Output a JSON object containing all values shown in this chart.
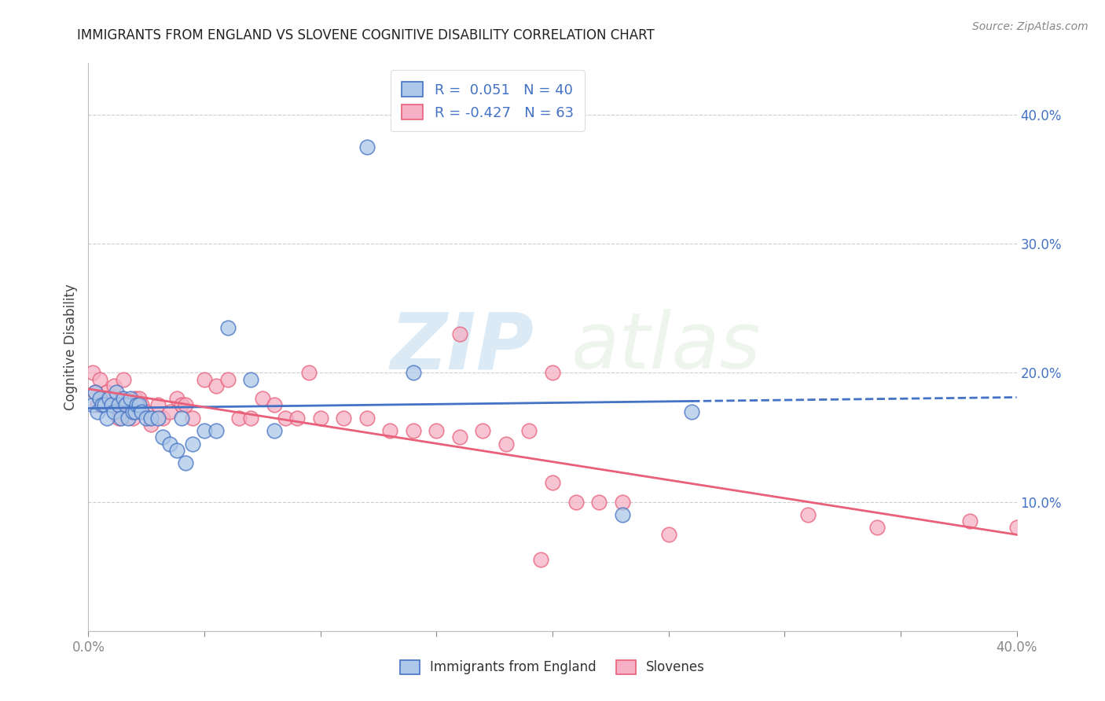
{
  "title": "IMMIGRANTS FROM ENGLAND VS SLOVENE COGNITIVE DISABILITY CORRELATION CHART",
  "source": "Source: ZipAtlas.com",
  "ylabel": "Cognitive Disability",
  "xlim": [
    0.0,
    0.4
  ],
  "ylim": [
    0.0,
    0.44
  ],
  "yticks_right": [
    0.1,
    0.2,
    0.3,
    0.4
  ],
  "ytick_labels_right": [
    "10.0%",
    "20.0%",
    "30.0%",
    "40.0%"
  ],
  "blue_R": 0.051,
  "blue_N": 40,
  "pink_R": -0.427,
  "pink_N": 63,
  "blue_color": "#adc8e8",
  "pink_color": "#f5b0c5",
  "blue_line_color": "#4472c4",
  "pink_line_color": "#e8607a",
  "legend_text_color": "#4472c4",
  "title_color": "#222222",
  "watermark_zip": "ZIP",
  "watermark_atlas": "atlas",
  "blue_scatter_x": [
    0.002,
    0.003,
    0.004,
    0.005,
    0.006,
    0.007,
    0.008,
    0.009,
    0.01,
    0.011,
    0.012,
    0.013,
    0.014,
    0.015,
    0.016,
    0.017,
    0.018,
    0.019,
    0.02,
    0.021,
    0.022,
    0.023,
    0.025,
    0.027,
    0.03,
    0.032,
    0.035,
    0.038,
    0.04,
    0.042,
    0.045,
    0.05,
    0.055,
    0.06,
    0.07,
    0.08,
    0.12,
    0.14,
    0.23,
    0.26
  ],
  "blue_scatter_y": [
    0.175,
    0.185,
    0.17,
    0.18,
    0.175,
    0.175,
    0.165,
    0.18,
    0.175,
    0.17,
    0.185,
    0.175,
    0.165,
    0.18,
    0.175,
    0.165,
    0.18,
    0.17,
    0.17,
    0.175,
    0.175,
    0.17,
    0.165,
    0.165,
    0.165,
    0.15,
    0.145,
    0.14,
    0.165,
    0.13,
    0.145,
    0.155,
    0.155,
    0.235,
    0.195,
    0.155,
    0.375,
    0.2,
    0.09,
    0.17
  ],
  "pink_scatter_x": [
    0.002,
    0.003,
    0.004,
    0.005,
    0.006,
    0.007,
    0.008,
    0.009,
    0.01,
    0.011,
    0.012,
    0.013,
    0.014,
    0.015,
    0.016,
    0.017,
    0.018,
    0.019,
    0.02,
    0.021,
    0.022,
    0.023,
    0.025,
    0.027,
    0.03,
    0.032,
    0.035,
    0.038,
    0.04,
    0.042,
    0.045,
    0.05,
    0.055,
    0.06,
    0.065,
    0.07,
    0.075,
    0.08,
    0.085,
    0.09,
    0.095,
    0.1,
    0.11,
    0.12,
    0.13,
    0.14,
    0.15,
    0.16,
    0.17,
    0.18,
    0.19,
    0.2,
    0.21,
    0.22,
    0.23,
    0.25,
    0.2,
    0.31,
    0.34,
    0.38,
    0.4,
    0.195,
    0.16
  ],
  "pink_scatter_y": [
    0.2,
    0.185,
    0.175,
    0.195,
    0.175,
    0.18,
    0.185,
    0.18,
    0.175,
    0.19,
    0.175,
    0.165,
    0.18,
    0.195,
    0.175,
    0.175,
    0.175,
    0.165,
    0.18,
    0.175,
    0.18,
    0.175,
    0.17,
    0.16,
    0.175,
    0.165,
    0.17,
    0.18,
    0.175,
    0.175,
    0.165,
    0.195,
    0.19,
    0.195,
    0.165,
    0.165,
    0.18,
    0.175,
    0.165,
    0.165,
    0.2,
    0.165,
    0.165,
    0.165,
    0.155,
    0.155,
    0.155,
    0.15,
    0.155,
    0.145,
    0.155,
    0.115,
    0.1,
    0.1,
    0.1,
    0.075,
    0.2,
    0.09,
    0.08,
    0.085,
    0.08,
    0.055,
    0.23
  ]
}
